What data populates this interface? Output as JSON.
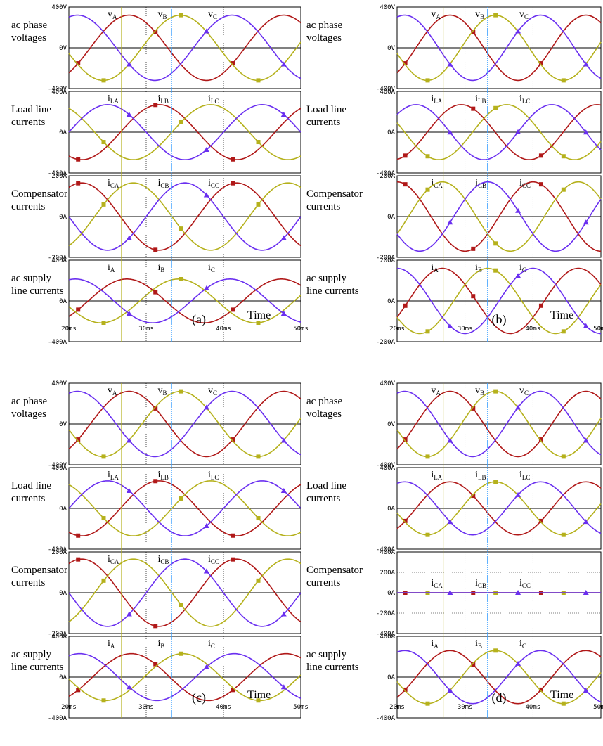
{
  "colors": {
    "phase_A": "#b01818",
    "phase_B": "#b5b11c",
    "phase_C": "#6a2ff0",
    "marker_B": "#3aa0ff",
    "grid": "#000000"
  },
  "common": {
    "time_label": "Time",
    "time_ticks": [
      "20ms",
      "30ms",
      "40ms",
      "50ms"
    ],
    "row_labels": [
      [
        "ac phase",
        "voltages"
      ],
      [
        "Load line",
        "currents"
      ],
      [
        "Compensator",
        "currents"
      ],
      [
        "ac supply",
        "line currents"
      ]
    ]
  },
  "chart_data": [
    {
      "type": "line",
      "panel_label": "(a)",
      "x_range_ms": [
        20,
        50
      ],
      "rows": [
        {
          "ticks": [
            "400V",
            "0V",
            "-400V"
          ],
          "ylim": [
            -400,
            400
          ],
          "amp": [
            320,
            320,
            320
          ],
          "phase_deg": [
            -50,
            190,
            70
          ],
          "labels": [
            "v",
            "v",
            "v"
          ],
          "subs": [
            "A",
            "B",
            "C"
          ]
        },
        {
          "ticks": [
            "400A",
            "0A",
            "-400A"
          ],
          "ylim": [
            -400,
            400
          ],
          "amp": [
            270,
            270,
            270
          ],
          "phase_deg": [
            -120,
            120,
            0
          ],
          "labels": [
            "i",
            "i",
            "i"
          ],
          "subs": [
            "LA",
            "LB",
            "LC"
          ]
        },
        {
          "ticks": [
            "200A",
            "0A",
            "-200A"
          ],
          "ylim": [
            -200,
            200
          ],
          "amp": [
            165,
            165,
            165
          ],
          "phase_deg": [
            60,
            300,
            180
          ],
          "labels": [
            "i",
            "i",
            "i"
          ],
          "subs": [
            "CA",
            "CB",
            "CC"
          ]
        },
        {
          "ticks": [
            "400A",
            "0A",
            "-400A"
          ],
          "ylim": [
            -400,
            400
          ],
          "amp": [
            215,
            215,
            215
          ],
          "phase_deg": [
            -45,
            195,
            75
          ],
          "labels": [
            "i",
            "i",
            "i"
          ],
          "subs": [
            "A",
            "B",
            "C"
          ]
        }
      ]
    },
    {
      "type": "line",
      "panel_label": "(b)",
      "x_range_ms": [
        20,
        50
      ],
      "rows": [
        {
          "ticks": [
            "400V",
            "0V",
            "-400V"
          ],
          "ylim": [
            -400,
            400
          ],
          "amp": [
            320,
            320,
            320
          ],
          "phase_deg": [
            -50,
            190,
            70
          ],
          "labels": [
            "v",
            "v",
            "v"
          ],
          "subs": [
            "A",
            "B",
            "C"
          ]
        },
        {
          "ticks": [
            "400A",
            "0A",
            "-400A"
          ],
          "ylim": [
            -400,
            400
          ],
          "amp": [
            270,
            270,
            270
          ],
          "phase_deg": [
            -80,
            160,
            40
          ],
          "labels": [
            "i",
            "i",
            "i"
          ],
          "subs": [
            "LA",
            "LB",
            "LC"
          ]
        },
        {
          "ticks": [
            "200A",
            "0A",
            "-200A"
          ],
          "ylim": [
            -200,
            200
          ],
          "amp": [
            170,
            170,
            170
          ],
          "phase_deg": [
            90,
            330,
            210
          ],
          "labels": [
            "i",
            "i",
            "i"
          ],
          "subs": [
            "CA",
            "CB",
            "CC"
          ]
        },
        {
          "ticks": [
            "200A",
            "0A",
            "-200A"
          ],
          "ylim": [
            -200,
            200
          ],
          "amp": [
            160,
            160,
            160
          ],
          "phase_deg": [
            -30,
            210,
            90
          ],
          "labels": [
            "i",
            "i",
            "i"
          ],
          "subs": [
            "A",
            "B",
            "C"
          ]
        }
      ]
    },
    {
      "type": "line",
      "panel_label": "(c)",
      "x_range_ms": [
        20,
        50
      ],
      "rows": [
        {
          "ticks": [
            "400V",
            "0V",
            "-400V"
          ],
          "ylim": [
            -400,
            400
          ],
          "amp": [
            320,
            320,
            320
          ],
          "phase_deg": [
            -50,
            190,
            70
          ],
          "labels": [
            "v",
            "v",
            "v"
          ],
          "subs": [
            "A",
            "B",
            "C"
          ]
        },
        {
          "ticks": [
            "400A",
            "0A",
            "-400A"
          ],
          "ylim": [
            -400,
            400
          ],
          "amp": [
            270,
            270,
            270
          ],
          "phase_deg": [
            -120,
            120,
            0
          ],
          "labels": [
            "i",
            "i",
            "i"
          ],
          "subs": [
            "LA",
            "LB",
            "LC"
          ]
        },
        {
          "ticks": [
            "200A",
            "0A",
            "-200A"
          ],
          "ylim": [
            -200,
            200
          ],
          "amp": [
            165,
            165,
            165
          ],
          "phase_deg": [
            60,
            300,
            180
          ],
          "labels": [
            "i",
            "i",
            "i"
          ],
          "subs": [
            "CA",
            "CB",
            "CC"
          ]
        },
        {
          "ticks": [
            "400A",
            "0A",
            "-400A"
          ],
          "ylim": [
            -400,
            400
          ],
          "amp": [
            230,
            230,
            230
          ],
          "phase_deg": [
            -55,
            185,
            65
          ],
          "labels": [
            "i",
            "i",
            "i"
          ],
          "subs": [
            "A",
            "B",
            "C"
          ]
        }
      ]
    },
    {
      "type": "line",
      "panel_label": "(d)",
      "x_range_ms": [
        20,
        50
      ],
      "rows": [
        {
          "ticks": [
            "400V",
            "0V",
            "-400V"
          ],
          "ylim": [
            -400,
            400
          ],
          "amp": [
            320,
            320,
            320
          ],
          "phase_deg": [
            -50,
            190,
            70
          ],
          "labels": [
            "v",
            "v",
            "v"
          ],
          "subs": [
            "A",
            "B",
            "C"
          ]
        },
        {
          "ticks": [
            "400A",
            "0A",
            "-400A"
          ],
          "ylim": [
            -400,
            400
          ],
          "amp": [
            260,
            260,
            260
          ],
          "phase_deg": [
            -50,
            190,
            70
          ],
          "labels": [
            "i",
            "i",
            "i"
          ],
          "subs": [
            "LA",
            "LB",
            "LC"
          ]
        },
        {
          "ticks": [
            "400A",
            "200A",
            "0A",
            "-200A",
            "-400A"
          ],
          "ylim": [
            -400,
            400
          ],
          "amp": [
            0,
            0,
            0
          ],
          "phase_deg": [
            0,
            0,
            0
          ],
          "labels": [
            "i",
            "i",
            "i"
          ],
          "subs": [
            "CA",
            "CB",
            "CC"
          ]
        },
        {
          "ticks": [
            "400A",
            "0A",
            "-400A"
          ],
          "ylim": [
            -400,
            400
          ],
          "amp": [
            260,
            260,
            260
          ],
          "phase_deg": [
            -50,
            190,
            70
          ],
          "labels": [
            "i",
            "i",
            "i"
          ],
          "subs": [
            "A",
            "B",
            "C"
          ]
        }
      ]
    }
  ]
}
